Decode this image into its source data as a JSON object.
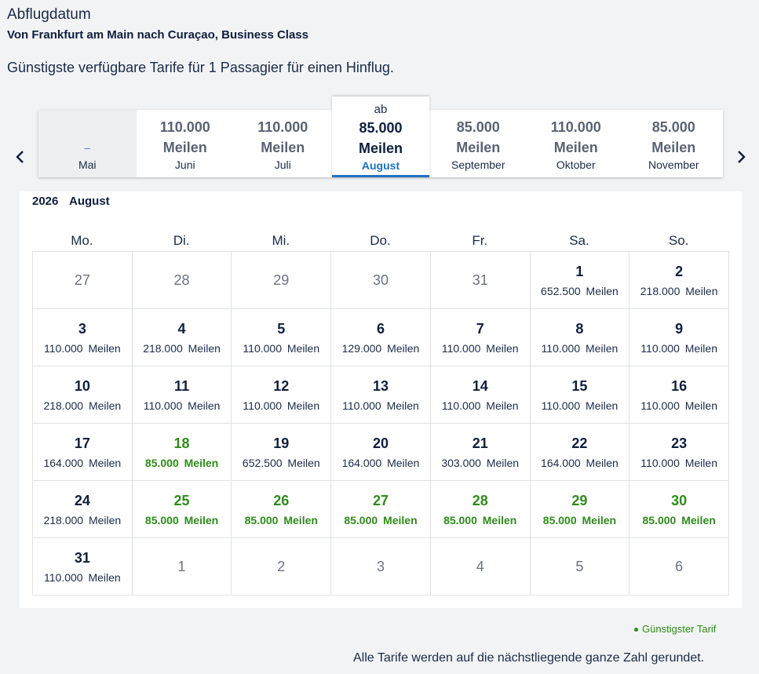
{
  "header": {
    "title": "Abflugdatum",
    "subtitle": "Von Frankfurt am Main nach Curaçao, Business Class",
    "fare_note": "Günstigste verfügbare Tarife für 1 Passagier für einen Hinflug."
  },
  "months": [
    {
      "price": "–",
      "name": "Mai"
    },
    {
      "price": "110.000 Meilen",
      "name": "Juni"
    },
    {
      "price": "110.000 Meilen",
      "name": "Juli"
    },
    {
      "prefix": "ab",
      "price": "85.000 Meilen",
      "name": "August"
    },
    {
      "price": "85.000 Meilen",
      "name": "September"
    },
    {
      "price": "110.000 Meilen",
      "name": "Oktober"
    },
    {
      "price": "85.000 Meilen",
      "name": "November"
    }
  ],
  "calendar": {
    "year": "2026",
    "month": "August",
    "weekdays": [
      "Mo.",
      "Di.",
      "Mi.",
      "Do.",
      "Fr.",
      "Sa.",
      "So."
    ],
    "cells": [
      {
        "day": "27",
        "outside": true
      },
      {
        "day": "28",
        "outside": true
      },
      {
        "day": "29",
        "outside": true
      },
      {
        "day": "30",
        "outside": true
      },
      {
        "day": "31",
        "outside": true
      },
      {
        "day": "1",
        "fare": "652.500 Meilen"
      },
      {
        "day": "2",
        "fare": "218.000 Meilen"
      },
      {
        "day": "3",
        "fare": "110.000 Meilen"
      },
      {
        "day": "4",
        "fare": "218.000 Meilen"
      },
      {
        "day": "5",
        "fare": "110.000 Meilen"
      },
      {
        "day": "6",
        "fare": "129.000 Meilen"
      },
      {
        "day": "7",
        "fare": "110.000 Meilen"
      },
      {
        "day": "8",
        "fare": "110.000 Meilen"
      },
      {
        "day": "9",
        "fare": "110.000 Meilen"
      },
      {
        "day": "10",
        "fare": "218.000 Meilen"
      },
      {
        "day": "11",
        "fare": "110.000 Meilen"
      },
      {
        "day": "12",
        "fare": "110.000 Meilen"
      },
      {
        "day": "13",
        "fare": "110.000 Meilen"
      },
      {
        "day": "14",
        "fare": "110.000 Meilen"
      },
      {
        "day": "15",
        "fare": "110.000 Meilen"
      },
      {
        "day": "16",
        "fare": "110.000 Meilen"
      },
      {
        "day": "17",
        "fare": "164.000 Meilen"
      },
      {
        "day": "18",
        "fare": "85.000 Meilen",
        "cheapest": true
      },
      {
        "day": "19",
        "fare": "652.500 Meilen"
      },
      {
        "day": "20",
        "fare": "164.000 Meilen"
      },
      {
        "day": "21",
        "fare": "303.000 Meilen"
      },
      {
        "day": "22",
        "fare": "164.000 Meilen"
      },
      {
        "day": "23",
        "fare": "110.000 Meilen"
      },
      {
        "day": "24",
        "fare": "218.000 Meilen"
      },
      {
        "day": "25",
        "fare": "85.000 Meilen",
        "cheapest": true
      },
      {
        "day": "26",
        "fare": "85.000 Meilen",
        "cheapest": true
      },
      {
        "day": "27",
        "fare": "85.000 Meilen",
        "cheapest": true
      },
      {
        "day": "28",
        "fare": "85.000 Meilen",
        "cheapest": true
      },
      {
        "day": "29",
        "fare": "85.000 Meilen",
        "cheapest": true
      },
      {
        "day": "30",
        "fare": "85.000 Meilen",
        "cheapest": true
      },
      {
        "day": "31",
        "fare": "110.000 Meilen"
      },
      {
        "day": "1",
        "outside": true
      },
      {
        "day": "2",
        "outside": true
      },
      {
        "day": "3",
        "outside": true
      },
      {
        "day": "4",
        "outside": true
      },
      {
        "day": "5",
        "outside": true
      },
      {
        "day": "6",
        "outside": true
      }
    ]
  },
  "legend": {
    "label": "Günstigster Tarif",
    "color": "#2e8b1a"
  },
  "footer": {
    "rounding_note": "Alle Tarife werden auf die nächstliegende ganze Zahl gerundet."
  },
  "icons": {
    "prev": "chevron-left-icon",
    "next": "chevron-right-icon"
  }
}
